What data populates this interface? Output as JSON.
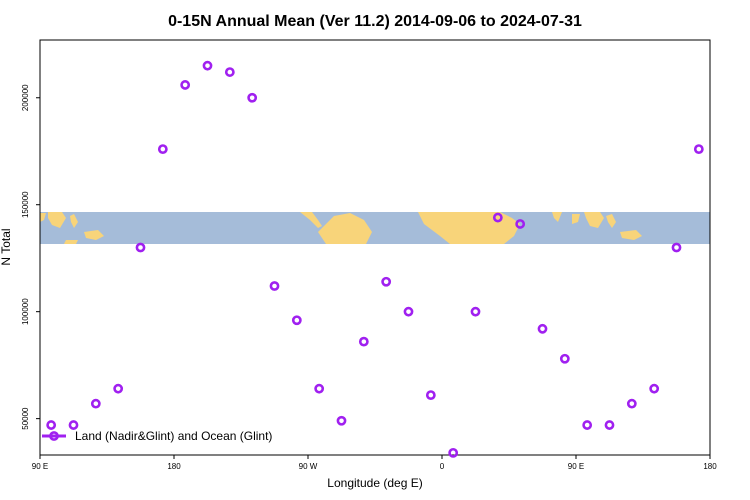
{
  "chart_data": {
    "type": "scatter",
    "title": "0-15N Annual Mean (Ver 11.2)   2014-09-06 to 2024-07-31",
    "xlabel": "Longitude (deg E)",
    "ylabel": "N Total",
    "x_ticks": [
      {
        "value": 90,
        "label": "90 E"
      },
      {
        "value": 180,
        "label": "180"
      },
      {
        "value": 270,
        "label": "90 W"
      },
      {
        "value": 360,
        "label": "0"
      },
      {
        "value": 450,
        "label": "90 E"
      },
      {
        "value": 540,
        "label": "180"
      }
    ],
    "y_ticks": [
      50000,
      100000,
      150000,
      200000
    ],
    "xlim": [
      90,
      540
    ],
    "ylim": [
      33000,
      227000
    ],
    "background_map": "equatorial world map strip (land/ocean)",
    "colors": {
      "series": "#a020f0",
      "ocean": "#a5bcd9",
      "land": "#f8d47a"
    },
    "series": [
      {
        "name": "Land (Nadir&Glint) and Ocean (Glint)",
        "x": [
          97.5,
          112.5,
          127.5,
          142.5,
          157.5,
          172.5,
          187.5,
          202.5,
          217.5,
          232.5,
          247.5,
          262.5,
          277.5,
          292.5,
          307.5,
          322.5,
          337.5,
          352.5,
          367.5,
          382.5,
          397.5,
          412.5,
          427.5,
          442.5,
          457.5,
          472.5,
          487.5,
          502.5,
          517.5,
          532.5
        ],
        "y": [
          47000,
          47000,
          57000,
          64000,
          130000,
          176000,
          206000,
          215000,
          212000,
          200000,
          112000,
          96000,
          64000,
          49000,
          86000,
          114000,
          100000,
          61000,
          34000,
          100000,
          144000,
          141000,
          92000,
          78000,
          47000,
          47000,
          57000,
          64000,
          130000,
          176000
        ]
      }
    ]
  }
}
